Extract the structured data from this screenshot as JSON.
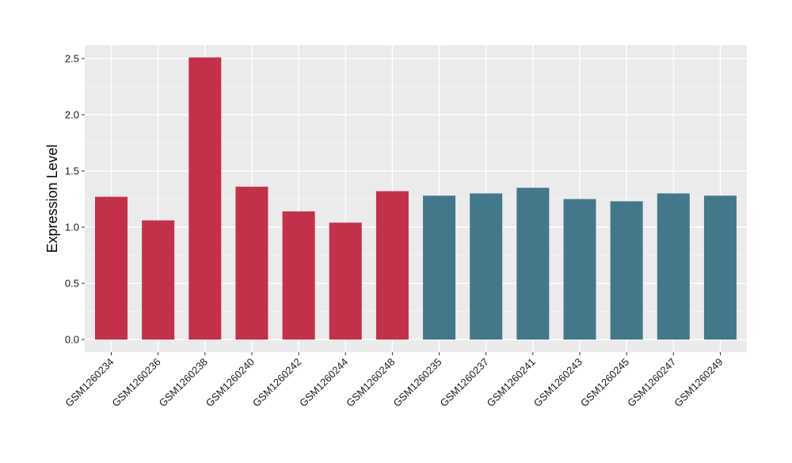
{
  "chart_data": {
    "type": "bar",
    "ylabel": "Expression Level",
    "xlabel": "",
    "title": "",
    "ylim": [
      -0.1,
      2.6
    ],
    "yticks": [
      0.0,
      0.5,
      1.0,
      1.5,
      2.0,
      2.5
    ],
    "ytick_labels": [
      "0.0",
      "0.5",
      "1.0",
      "1.5",
      "2.0",
      "2.5"
    ],
    "grid": true,
    "legend": "none",
    "panel_background": "#ebebeb",
    "categories": [
      "GSM1260234",
      "GSM1260236",
      "GSM1260238",
      "GSM1260240",
      "GSM1260242",
      "GSM1260244",
      "GSM1260248",
      "GSM1260235",
      "GSM1260237",
      "GSM1260241",
      "GSM1260243",
      "GSM1260245",
      "GSM1260247",
      "GSM1260249"
    ],
    "values": [
      1.27,
      1.06,
      2.51,
      1.36,
      1.14,
      1.04,
      1.32,
      1.28,
      1.3,
      1.35,
      1.25,
      1.23,
      1.3,
      1.28
    ],
    "bar_colors": [
      "#c3304a",
      "#c3304a",
      "#c3304a",
      "#c3304a",
      "#c3304a",
      "#c3304a",
      "#c3304a",
      "#43788a",
      "#43788a",
      "#43788a",
      "#43788a",
      "#43788a",
      "#43788a",
      "#43788a"
    ]
  }
}
